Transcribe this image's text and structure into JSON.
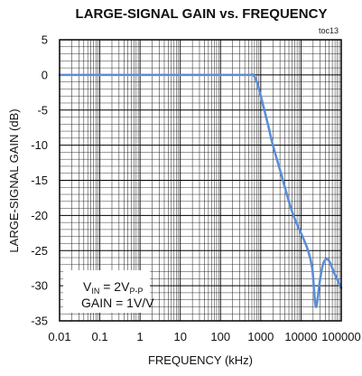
{
  "chart_data": {
    "type": "line",
    "title": "LARGE-SIGNAL GAIN vs. FREQUENCY",
    "tag": "toc13",
    "xlabel": "FREQUENCY (kHz)",
    "ylabel": "LARGE-SIGNAL GAIN (dB)",
    "x_scale": "log",
    "xlim": [
      0.01,
      100000
    ],
    "ylim": [
      -35,
      5
    ],
    "x_ticks": [
      "0.01",
      "0.1",
      "1",
      "10",
      "100",
      "1000",
      "10000",
      "100000"
    ],
    "y_ticks": [
      "5",
      "0",
      "-5",
      "-10",
      "-15",
      "-20",
      "-25",
      "-30",
      "-35"
    ],
    "grid": true,
    "line_color": "#5b8ed6",
    "legend": {
      "placement": "bottom-left",
      "vin_prefix": "V",
      "vin_sub": "IN",
      "vin_eq": " = 2V",
      "vin_sub2": "P-P",
      "gain": "GAIN = 1V/V"
    },
    "series": [
      {
        "x": [
          0.01,
          0.1,
          1,
          10,
          100,
          400,
          550,
          650,
          800,
          1000,
          1500,
          2000,
          3000,
          5000,
          7000,
          10000,
          15000,
          19000,
          21000,
          23000,
          25000,
          30000,
          35000,
          42000,
          50000,
          60000,
          75000,
          100000
        ],
        "y": [
          0,
          0,
          0,
          0,
          0,
          0,
          0,
          0,
          -1,
          -3,
          -7,
          -10,
          -13.5,
          -18,
          -20.5,
          -22.5,
          -25,
          -27.5,
          -30.5,
          -32.8,
          -32.5,
          -29,
          -27,
          -26.2,
          -26.5,
          -27.5,
          -28.8,
          -30.3
        ]
      }
    ]
  }
}
